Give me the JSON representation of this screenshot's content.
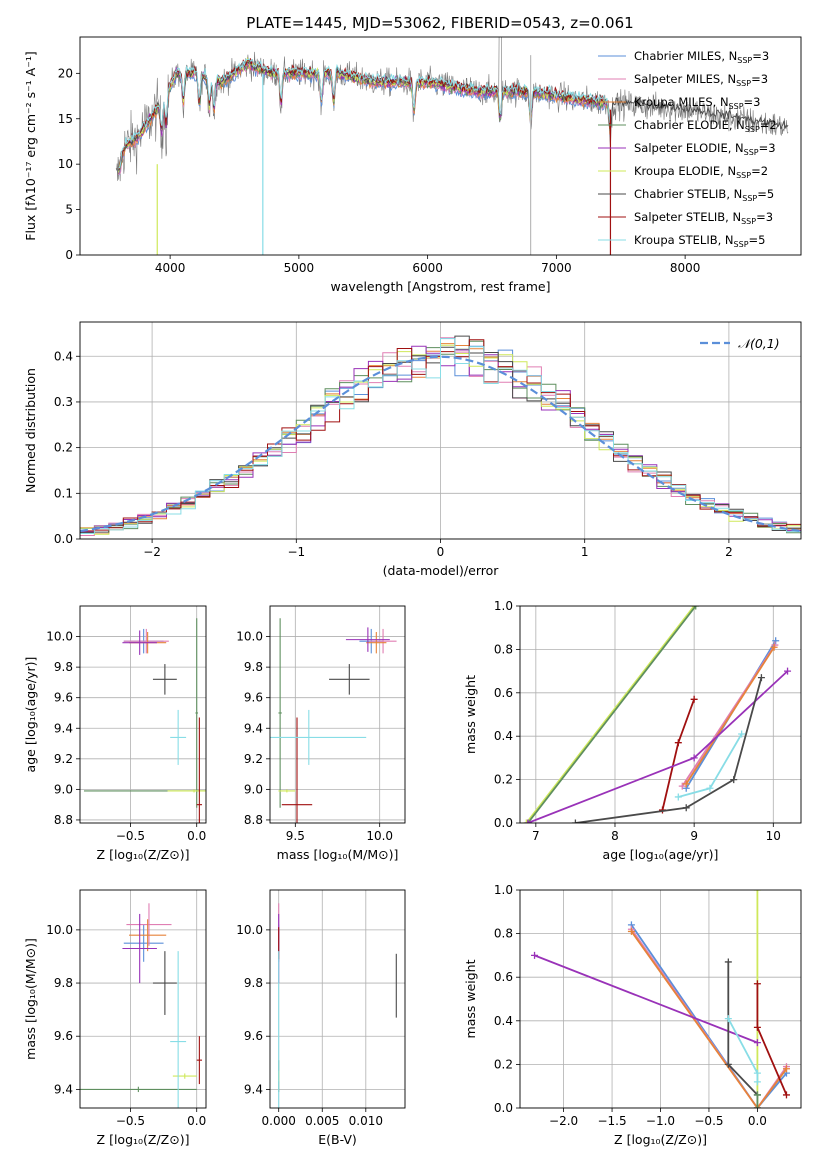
{
  "colors": {
    "chabrier_miles": "#5b8fd9",
    "salpeter_miles": "#e07fb3",
    "kroupa_miles": "#e6833a",
    "chabrier_elodie": "#5f8f5f",
    "salpeter_elodie": "#9932b8",
    "kroupa_elodie": "#cfe85a",
    "chabrier_stelib": "#4a4a4a",
    "salpeter_stelib": "#a01010",
    "kroupa_stelib": "#88dde6",
    "grid": "#b0b0b0",
    "normal_curve": "#5b8fd9"
  },
  "chart_data": [
    {
      "id": "spectrum",
      "type": "line",
      "title": "PLATE=1445, MJD=53062, FIBERID=0543, z=0.061",
      "xlabel": "wavelength [Angstrom, rest frame]",
      "ylabel": "Flux [fλ10⁻¹⁷ erg cm⁻² s⁻¹ A⁻¹]",
      "xlim": [
        3300,
        8900
      ],
      "ylim": [
        0,
        24
      ],
      "xticks": [
        4000,
        5000,
        6000,
        7000,
        8000
      ],
      "yticks": [
        0,
        5,
        10,
        15,
        20
      ],
      "grid": false,
      "legend_position": "top-right",
      "legend": [
        "Chabrier MILES, N_SSP=3",
        "Salpeter MILES, N_SSP=3",
        "Kroupa MILES, N_SSP=3",
        "Chabrier ELODIE, N_SSP=2",
        "Salpeter ELODIE, N_SSP=3",
        "Kroupa ELODIE, N_SSP=2",
        "Chabrier STELIB, N_SSP=5",
        "Salpeter STELIB, N_SSP=3",
        "Kroupa STELIB, N_SSP=5"
      ],
      "data_shape": [
        [
          3580,
          8
        ],
        [
          3650,
          12
        ],
        [
          3750,
          13
        ],
        [
          3850,
          15
        ],
        [
          3950,
          17
        ],
        [
          4050,
          20
        ],
        [
          4200,
          20
        ],
        [
          4400,
          19
        ],
        [
          4600,
          21
        ],
        [
          4800,
          20
        ],
        [
          5000,
          20
        ],
        [
          5300,
          20
        ],
        [
          5600,
          19
        ],
        [
          6000,
          19
        ],
        [
          6400,
          18
        ],
        [
          6800,
          18
        ],
        [
          7200,
          17
        ],
        [
          7600,
          16.5
        ],
        [
          8000,
          16
        ],
        [
          8400,
          15
        ],
        [
          8800,
          14
        ]
      ],
      "absorption_lines": [
        3934,
        3969,
        4102,
        4227,
        4304,
        4340,
        4861,
        5175,
        5270,
        5893,
        6563,
        6800,
        7420
      ],
      "full_range_models": [
        "Chabrier STELIB, N_SSP=5"
      ]
    },
    {
      "id": "residuals",
      "type": "step",
      "xlabel": "(data-model)/error",
      "ylabel": "Normed distribution",
      "xlim": [
        -2.5,
        2.5
      ],
      "ylim": [
        0,
        0.475
      ],
      "xticks": [
        -2,
        -1,
        0,
        1,
        2
      ],
      "yticks": [
        0.0,
        0.1,
        0.2,
        0.3,
        0.4
      ],
      "grid": true,
      "legend_position": "top-right",
      "legend": [
        "𝒩(0,1)"
      ],
      "normal": {
        "mean": 0,
        "sigma": 1
      },
      "bin_edges": [
        -2.5,
        -2.4,
        -2.3,
        -2.2,
        -2.1,
        -2.0,
        -1.9,
        -1.8,
        -1.7,
        -1.6,
        -1.5,
        -1.4,
        -1.3,
        -1.2,
        -1.1,
        -1.0,
        -0.9,
        -0.8,
        -0.7,
        -0.6,
        -0.5,
        -0.4,
        -0.3,
        -0.2,
        -0.1,
        0.0,
        0.1,
        0.2,
        0.3,
        0.4,
        0.5,
        0.6,
        0.7,
        0.8,
        0.9,
        1.0,
        1.1,
        1.2,
        1.3,
        1.4,
        1.5,
        1.6,
        1.7,
        1.8,
        1.9,
        2.0,
        2.1,
        2.2,
        2.3,
        2.4,
        2.5
      ]
    },
    {
      "id": "z_vs_age",
      "type": "errorbar",
      "xlabel": "Z [log₁₀(Z/Z⊙)]",
      "ylabel": "age  [log₁₀(age/yr)]",
      "xlim": [
        -0.88,
        0.07
      ],
      "ylim": [
        8.78,
        10.2
      ],
      "xticks": [
        -0.5,
        0.0
      ],
      "yticks": [
        8.8,
        9.0,
        9.2,
        9.4,
        9.6,
        9.8,
        10.0
      ],
      "grid": true,
      "points": [
        {
          "model": "chabrier_miles",
          "x": -0.4,
          "xerr": 0.15,
          "y": 9.97,
          "yerr": 0.08
        },
        {
          "model": "salpeter_miles",
          "x": -0.38,
          "xerr": 0.17,
          "y": 9.97,
          "yerr": 0.08
        },
        {
          "model": "kroupa_miles",
          "x": -0.37,
          "xerr": 0.14,
          "y": 9.96,
          "yerr": 0.07
        },
        {
          "model": "chabrier_elodie",
          "x": 0.0,
          "xerr": 0.85,
          "y": 8.99,
          "yerr": 0.01
        },
        {
          "model": "chabrier_elodie",
          "x": 0.0,
          "xerr": 0.01,
          "y": 9.5,
          "yerr": 0.62
        },
        {
          "model": "salpeter_elodie",
          "x": -0.43,
          "xerr": 0.13,
          "y": 9.96,
          "yerr": 0.08
        },
        {
          "model": "kroupa_elodie",
          "x": -0.02,
          "xerr": 0.2,
          "y": 8.99,
          "yerr": 0.01
        },
        {
          "model": "chabrier_stelib",
          "x": -0.24,
          "xerr": 0.09,
          "y": 9.72,
          "yerr": 0.1
        },
        {
          "model": "salpeter_stelib",
          "x": 0.02,
          "xerr": 0.02,
          "y": 8.9,
          "yerr": 0.57
        },
        {
          "model": "kroupa_stelib",
          "x": -0.14,
          "xerr": 0.06,
          "y": 9.34,
          "yerr": 0.18
        }
      ]
    },
    {
      "id": "mass_vs_age",
      "type": "errorbar",
      "xlabel": "mass [log₁₀(M/M⊙)]",
      "ylabel": "",
      "xlim": [
        9.35,
        10.15
      ],
      "ylim": [
        8.78,
        10.2
      ],
      "xticks": [
        9.5,
        10.0
      ],
      "yticks": [
        8.8,
        9.0,
        9.2,
        9.4,
        9.6,
        9.8,
        10.0
      ],
      "grid": true,
      "points": [
        {
          "model": "chabrier_miles",
          "x": 9.95,
          "xerr": 0.07,
          "y": 9.97,
          "yerr": 0.08
        },
        {
          "model": "salpeter_miles",
          "x": 10.02,
          "xerr": 0.08,
          "y": 9.97,
          "yerr": 0.08
        },
        {
          "model": "kroupa_miles",
          "x": 9.98,
          "xerr": 0.06,
          "y": 9.96,
          "yerr": 0.07
        },
        {
          "model": "chabrier_elodie",
          "x": 9.41,
          "xerr": 0.01,
          "y": 9.5,
          "yerr": 0.62
        },
        {
          "model": "salpeter_elodie",
          "x": 9.93,
          "xerr": 0.13,
          "y": 9.98,
          "yerr": 0.08
        },
        {
          "model": "kroupa_elodie",
          "x": 9.45,
          "xerr": 0.05,
          "y": 8.99,
          "yerr": 0.01
        },
        {
          "model": "chabrier_stelib",
          "x": 9.82,
          "xerr": 0.12,
          "y": 9.72,
          "yerr": 0.1
        },
        {
          "model": "salpeter_stelib",
          "x": 9.51,
          "xerr": 0.09,
          "y": 8.9,
          "yerr": 0.57
        },
        {
          "model": "kroupa_stelib",
          "x": 9.58,
          "xerr": 0.34,
          "y": 9.34,
          "yerr": 0.18
        }
      ]
    },
    {
      "id": "age_cumulative",
      "type": "line",
      "xlabel": "age  [log₁₀(age/yr)]",
      "ylabel": "mass weight",
      "xlim": [
        6.8,
        10.35
      ],
      "ylim": [
        0,
        1
      ],
      "xticks": [
        7,
        8,
        9,
        10
      ],
      "yticks": [
        0.0,
        0.2,
        0.4,
        0.6,
        0.8,
        1.0
      ],
      "grid": true,
      "series": [
        {
          "model": "kroupa_elodie",
          "x": [
            6.88,
            9.0
          ],
          "y": [
            0.0,
            1.0
          ]
        },
        {
          "model": "chabrier_elodie",
          "x": [
            6.9,
            9.02
          ],
          "y": [
            0.0,
            1.0
          ]
        },
        {
          "model": "salpeter_stelib",
          "x": [
            8.6,
            8.8,
            9.0
          ],
          "y": [
            0.06,
            0.37,
            0.57
          ]
        },
        {
          "model": "chabrier_miles",
          "x": [
            8.9,
            10.03
          ],
          "y": [
            0.16,
            0.84
          ]
        },
        {
          "model": "salpeter_miles",
          "x": [
            8.85,
            10.02
          ],
          "y": [
            0.17,
            0.82
          ]
        },
        {
          "model": "kroupa_miles",
          "x": [
            8.9,
            10.01
          ],
          "y": [
            0.18,
            0.81
          ]
        },
        {
          "model": "salpeter_elodie",
          "x": [
            6.9,
            9.0,
            10.18
          ],
          "y": [
            0.0,
            0.3,
            0.7
          ]
        },
        {
          "model": "chabrier_stelib",
          "x": [
            7.5,
            8.9,
            9.5,
            9.85
          ],
          "y": [
            0.0,
            0.07,
            0.2,
            0.67
          ]
        },
        {
          "model": "kroupa_stelib",
          "x": [
            8.8,
            9.2,
            9.6
          ],
          "y": [
            0.12,
            0.16,
            0.41
          ]
        }
      ]
    },
    {
      "id": "z_vs_mass",
      "type": "errorbar",
      "xlabel": "Z [log₁₀(Z/Z⊙)]",
      "ylabel": "mass [log₁₀(M/M⊙)]",
      "xlim": [
        -0.88,
        0.07
      ],
      "ylim": [
        9.33,
        10.15
      ],
      "xticks": [
        -0.5,
        0.0
      ],
      "yticks": [
        9.4,
        9.6,
        9.8,
        10.0
      ],
      "grid": true,
      "points": [
        {
          "model": "chabrier_miles",
          "x": -0.4,
          "xerr": 0.15,
          "y": 9.95,
          "yerr": 0.07
        },
        {
          "model": "salpeter_miles",
          "x": -0.36,
          "xerr": 0.17,
          "y": 10.02,
          "yerr": 0.08
        },
        {
          "model": "kroupa_miles",
          "x": -0.37,
          "xerr": 0.14,
          "y": 9.98,
          "yerr": 0.06
        },
        {
          "model": "chabrier_elodie",
          "x": -0.44,
          "xerr": 0.44,
          "y": 9.4,
          "yerr": 0.01
        },
        {
          "model": "salpeter_elodie",
          "x": -0.43,
          "xerr": 0.13,
          "y": 9.93,
          "yerr": 0.13
        },
        {
          "model": "kroupa_elodie",
          "x": -0.09,
          "xerr": 0.09,
          "y": 9.45,
          "yerr": 0.01
        },
        {
          "model": "chabrier_stelib",
          "x": -0.24,
          "xerr": 0.09,
          "y": 9.8,
          "yerr": 0.12
        },
        {
          "model": "salpeter_stelib",
          "x": 0.02,
          "xerr": 0.02,
          "y": 9.51,
          "yerr": 0.09
        },
        {
          "model": "kroupa_stelib",
          "x": -0.14,
          "xerr": 0.06,
          "y": 9.58,
          "yerr": 0.34
        }
      ]
    },
    {
      "id": "ebv_vs_mass",
      "type": "errorbar",
      "xlabel": "E(B-V)",
      "ylabel": "",
      "xlim": [
        -0.001,
        0.0145
      ],
      "ylim": [
        9.33,
        10.15
      ],
      "xticks": [
        0.0,
        0.005,
        0.01
      ],
      "xticklabels": [
        "0.000",
        "0.005",
        "0.010"
      ],
      "yticks": [
        9.4,
        9.6,
        9.8,
        10.0
      ],
      "grid": true,
      "points": [
        {
          "model": "chabrier_miles",
          "x": 0.0,
          "xerr": 0.0,
          "y": 9.95,
          "yerr": 0.07
        },
        {
          "model": "salpeter_miles",
          "x": 0.0,
          "xerr": 0.0,
          "y": 10.02,
          "yerr": 0.08
        },
        {
          "model": "chabrier_elodie",
          "x": 0.0,
          "xerr": 0.0,
          "y": 9.45,
          "yerr": 0.06
        },
        {
          "model": "salpeter_elodie",
          "x": 0.0,
          "xerr": 0.0,
          "y": 9.93,
          "yerr": 0.13
        },
        {
          "model": "kroupa_elodie",
          "x": 0.0,
          "xerr": 0.0,
          "y": 9.45,
          "yerr": 0.02
        },
        {
          "model": "salpeter_stelib",
          "x": 0.0,
          "xerr": 0.0,
          "y": 9.95,
          "yerr": 0.06
        },
        {
          "model": "kroupa_stelib",
          "x": 0.0,
          "xerr": 0.0,
          "y": 9.58,
          "yerr": 0.34
        },
        {
          "model": "chabrier_stelib",
          "x": 0.0135,
          "xerr": 0.0,
          "y": 9.79,
          "yerr": 0.12
        }
      ]
    },
    {
      "id": "z_cumulative",
      "type": "line",
      "xlabel": "Z [log₁₀(Z/Z⊙)]",
      "ylabel": "mass weight",
      "xlim": [
        -2.45,
        0.45
      ],
      "ylim": [
        0,
        1
      ],
      "xticks": [
        -2.0,
        -1.5,
        -1.0,
        -0.5,
        0.0
      ],
      "xticklabels": [
        "−2.0",
        "−1.5",
        "−1.0",
        "−0.5",
        "0.0"
      ],
      "yticks": [
        0.0,
        0.2,
        0.4,
        0.6,
        0.8,
        1.0
      ],
      "grid": true,
      "series": [
        {
          "model": "kroupa_elodie",
          "x": [
            0.0,
            0.0
          ],
          "y": [
            0.0,
            1.0
          ]
        },
        {
          "model": "chabrier_miles",
          "x": [
            -1.3,
            0.0,
            0.3
          ],
          "y": [
            0.84,
            0.0,
            0.16
          ]
        },
        {
          "model": "salpeter_miles",
          "x": [
            -1.3,
            0.0,
            0.3
          ],
          "y": [
            0.82,
            0.0,
            0.19
          ]
        },
        {
          "model": "kroupa_miles",
          "x": [
            -1.3,
            0.0,
            0.3
          ],
          "y": [
            0.81,
            0.0,
            0.18
          ]
        },
        {
          "model": "salpeter_elodie",
          "x": [
            -2.3,
            0.0
          ],
          "y": [
            0.7,
            0.3
          ]
        },
        {
          "model": "chabrier_stelib",
          "x": [
            -0.3,
            -0.3,
            0.0
          ],
          "y": [
            0.67,
            0.2,
            0.06
          ]
        },
        {
          "model": "kroupa_stelib",
          "x": [
            -0.3,
            0.0,
            0.0
          ],
          "y": [
            0.41,
            0.16,
            0.12
          ]
        },
        {
          "model": "salpeter_stelib",
          "x": [
            0.0,
            0.0,
            0.3
          ],
          "y": [
            0.57,
            0.37,
            0.06
          ]
        },
        {
          "model": "chabrier_elodie",
          "x": [
            0.0,
            0.0
          ],
          "y": [
            0.0,
            0.06
          ]
        }
      ]
    }
  ]
}
